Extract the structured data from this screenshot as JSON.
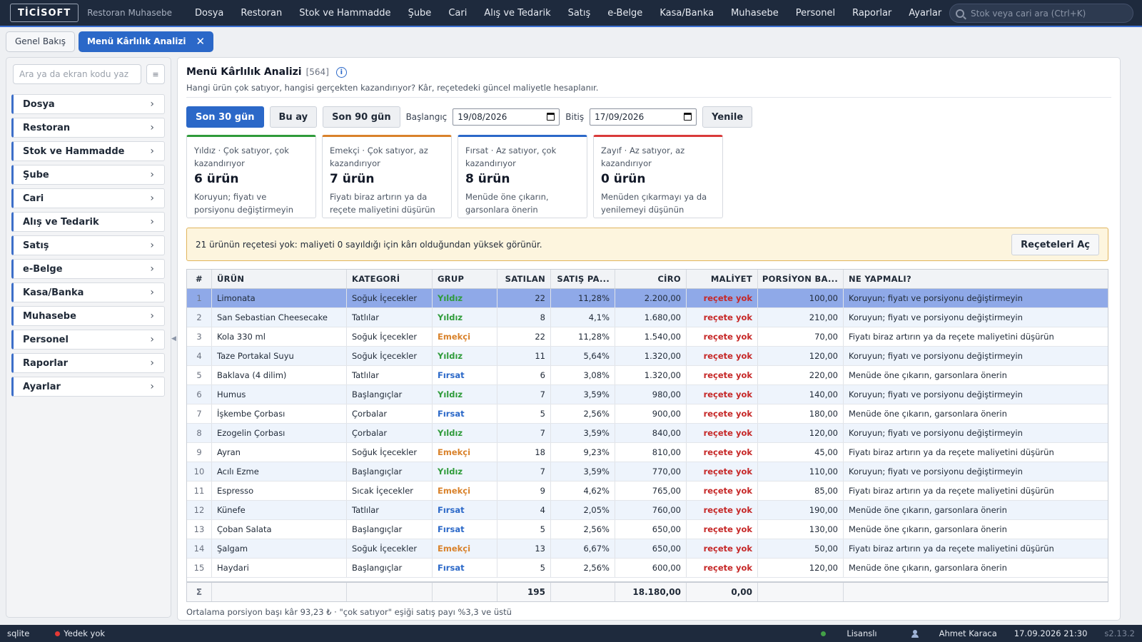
{
  "app": {
    "logo": "TİCİSOFT",
    "name": "Restoran Muhasebe"
  },
  "menu": [
    "Dosya",
    "Restoran",
    "Stok ve Hammadde",
    "Şube",
    "Cari",
    "Alış ve Tedarik",
    "Satış",
    "e-Belge",
    "Kasa/Banka",
    "Muhasebe",
    "Personel",
    "Raporlar",
    "Ayarlar"
  ],
  "search": {
    "placeholder": "Stok veya cari ara (Ctrl+K)"
  },
  "tabs": [
    {
      "label": "Genel Bakış",
      "active": false
    },
    {
      "label": "Menü Kârlılık Analizi",
      "active": true,
      "close": "✕"
    }
  ],
  "sidebar": {
    "search_placeholder": "Ara ya da ekran kodu yaz",
    "menu_button": "≡",
    "items": [
      "Dosya",
      "Restoran",
      "Stok ve Hammadde",
      "Şube",
      "Cari",
      "Alış ve Tedarik",
      "Satış",
      "e-Belge",
      "Kasa/Banka",
      "Muhasebe",
      "Personel",
      "Raporlar",
      "Ayarlar"
    ],
    "chevron": "›"
  },
  "page": {
    "title": "Menü Kârlılık Analizi",
    "code": "[564]",
    "info": "i",
    "subtitle": "Hangi ürün çok satıyor, hangisi gerçekten kazandırıyor? Kâr, reçetedeki güncel maliyetle hesaplanır."
  },
  "filters": {
    "last30": "Son 30 gün",
    "this_month": "Bu ay",
    "last90": "Son 90 gün",
    "start_label": "Başlangıç",
    "start_value": "19/08/2026",
    "end_label": "Bitiş",
    "end_value": "17/09/2026",
    "refresh": "Yenile"
  },
  "cards": [
    {
      "title": "Yıldız · Çok satıyor, çok kazandırıyor",
      "value": "6 ürün",
      "desc": "Koruyun; fiyatı ve porsiyonu değiştirmeyin",
      "color": "#2f9b3a"
    },
    {
      "title": "Emekçi · Çok satıyor, az kazandırıyor",
      "value": "7 ürün",
      "desc": "Fiyatı biraz artırın ya da reçete maliyetini düşürün",
      "color": "#d9822b"
    },
    {
      "title": "Fırsat · Az satıyor, çok kazandırıyor",
      "value": "8 ürün",
      "desc": "Menüde öne çıkarın, garsonlara önerin",
      "color": "#2b68c8"
    },
    {
      "title": "Zayıf · Az satıyor, az kazandırıyor",
      "value": "0 ürün",
      "desc": "Menüden çıkarmayı ya da yenilemeyi düşünün",
      "color": "#d93a3a"
    }
  ],
  "warning": {
    "text": "21 ürünün reçetesi yok: maliyeti 0 sayıldığı için kârı olduğundan yüksek görünür.",
    "button": "Reçeteleri Aç"
  },
  "table": {
    "columns": [
      "#",
      "ÜRÜN",
      "KATEGORİ",
      "GRUP",
      "SATILAN",
      "SATIŞ PA...",
      "CİRO",
      "MALİYET",
      "PORSİYON BA...",
      "NE YAPMALI?"
    ],
    "rows": [
      [
        "1",
        "Limonata",
        "Soğuk İçecekler",
        "Yıldız",
        "22",
        "11,28%",
        "2.200,00",
        "reçete yok",
        "100,00",
        "Koruyun; fiyatı ve porsiyonu değiştirmeyin"
      ],
      [
        "2",
        "San Sebastian Cheesecake",
        "Tatlılar",
        "Yıldız",
        "8",
        "4,1%",
        "1.680,00",
        "reçete yok",
        "210,00",
        "Koruyun; fiyatı ve porsiyonu değiştirmeyin"
      ],
      [
        "3",
        "Kola 330 ml",
        "Soğuk İçecekler",
        "Emekçi",
        "22",
        "11,28%",
        "1.540,00",
        "reçete yok",
        "70,00",
        "Fiyatı biraz artırın ya da reçete maliyetini düşürün"
      ],
      [
        "4",
        "Taze Portakal Suyu",
        "Soğuk İçecekler",
        "Yıldız",
        "11",
        "5,64%",
        "1.320,00",
        "reçete yok",
        "120,00",
        "Koruyun; fiyatı ve porsiyonu değiştirmeyin"
      ],
      [
        "5",
        "Baklava (4 dilim)",
        "Tatlılar",
        "Fırsat",
        "6",
        "3,08%",
        "1.320,00",
        "reçete yok",
        "220,00",
        "Menüde öne çıkarın, garsonlara önerin"
      ],
      [
        "6",
        "Humus",
        "Başlangıçlar",
        "Yıldız",
        "7",
        "3,59%",
        "980,00",
        "reçete yok",
        "140,00",
        "Koruyun; fiyatı ve porsiyonu değiştirmeyin"
      ],
      [
        "7",
        "İşkembe Çorbası",
        "Çorbalar",
        "Fırsat",
        "5",
        "2,56%",
        "900,00",
        "reçete yok",
        "180,00",
        "Menüde öne çıkarın, garsonlara önerin"
      ],
      [
        "8",
        "Ezogelin Çorbası",
        "Çorbalar",
        "Yıldız",
        "7",
        "3,59%",
        "840,00",
        "reçete yok",
        "120,00",
        "Koruyun; fiyatı ve porsiyonu değiştirmeyin"
      ],
      [
        "9",
        "Ayran",
        "Soğuk İçecekler",
        "Emekçi",
        "18",
        "9,23%",
        "810,00",
        "reçete yok",
        "45,00",
        "Fiyatı biraz artırın ya da reçete maliyetini düşürün"
      ],
      [
        "10",
        "Acılı Ezme",
        "Başlangıçlar",
        "Yıldız",
        "7",
        "3,59%",
        "770,00",
        "reçete yok",
        "110,00",
        "Koruyun; fiyatı ve porsiyonu değiştirmeyin"
      ],
      [
        "11",
        "Espresso",
        "Sıcak İçecekler",
        "Emekçi",
        "9",
        "4,62%",
        "765,00",
        "reçete yok",
        "85,00",
        "Fiyatı biraz artırın ya da reçete maliyetini düşürün"
      ],
      [
        "12",
        "Künefe",
        "Tatlılar",
        "Fırsat",
        "4",
        "2,05%",
        "760,00",
        "reçete yok",
        "190,00",
        "Menüde öne çıkarın, garsonlara önerin"
      ],
      [
        "13",
        "Çoban Salata",
        "Başlangıçlar",
        "Fırsat",
        "5",
        "2,56%",
        "650,00",
        "reçete yok",
        "130,00",
        "Menüde öne çıkarın, garsonlara önerin"
      ],
      [
        "14",
        "Şalgam",
        "Soğuk İçecekler",
        "Emekçi",
        "13",
        "6,67%",
        "650,00",
        "reçete yok",
        "50,00",
        "Fiyatı biraz artırın ya da reçete maliyetini düşürün"
      ],
      [
        "15",
        "Haydari",
        "Başlangıçlar",
        "Fırsat",
        "5",
        "2,56%",
        "600,00",
        "reçete yok",
        "120,00",
        "Menüde öne çıkarın, garsonlara önerin"
      ]
    ],
    "selected_row": 0,
    "footer": {
      "sigma": "Σ",
      "sold_total": "195",
      "revenue_total": "18.180,00",
      "cost_total": "0,00"
    }
  },
  "footnote": "Ortalama porsiyon başı kâr 93,23 ₺ · \"çok satıyor\" eşiği satış payı %3,3 ve üstü",
  "status": {
    "db": "sqlite",
    "backup": "Yedek yok",
    "backup_color": "#e53935",
    "license": "Lisanslı",
    "license_color": "#43a047",
    "user": "Ahmet Karaca",
    "datetime": "17.09.2026 21:30",
    "version": "s2.13.2"
  }
}
